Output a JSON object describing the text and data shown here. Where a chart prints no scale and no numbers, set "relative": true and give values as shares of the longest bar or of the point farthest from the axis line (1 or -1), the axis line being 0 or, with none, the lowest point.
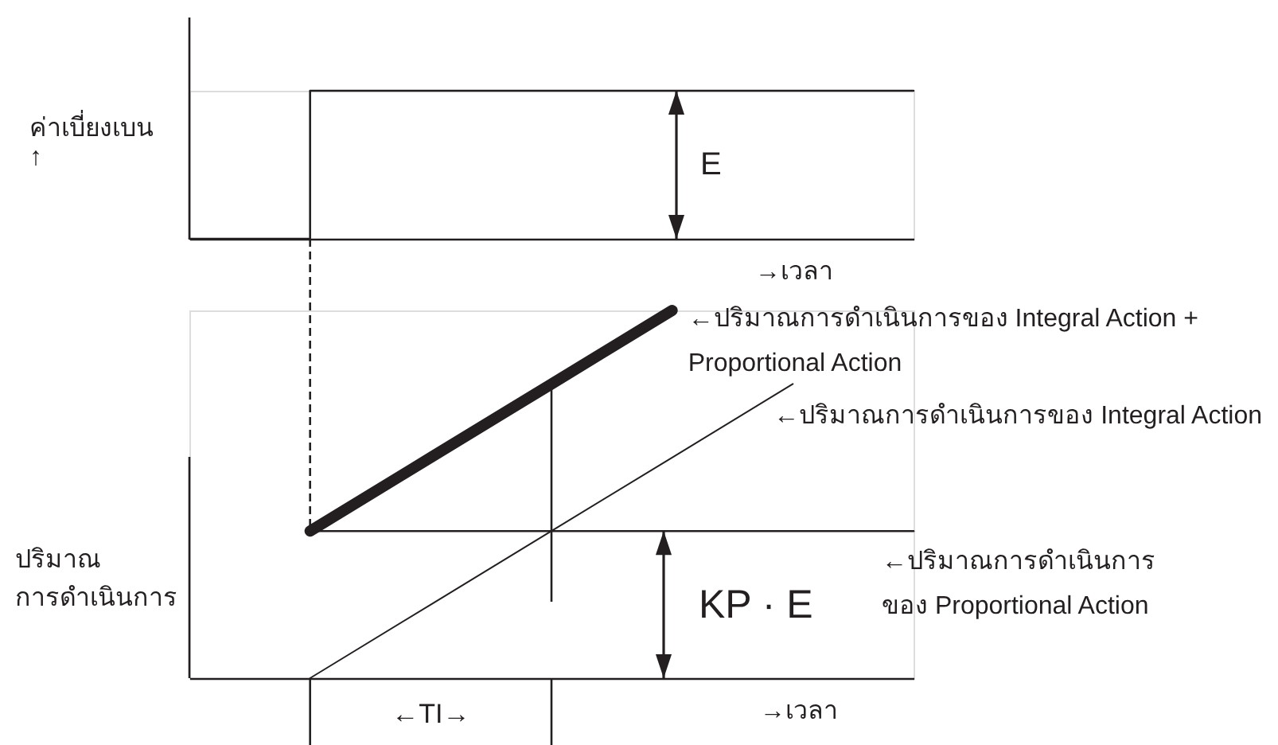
{
  "chart_data": [
    {
      "type": "step",
      "relative": true,
      "ylabel": "ค่าเบี่ยงเบน\n↑",
      "xlabel": "→เวลา",
      "categories": [
        null,
        null,
        null,
        null,
        null,
        null,
        null
      ],
      "series": [
        {
          "color": "#231f20",
          "values": [
            0,
            1,
            1,
            1,
            1,
            1,
            1
          ]
        }
      ],
      "annotations": [
        "E"
      ]
    },
    {
      "type": "line",
      "relative": true,
      "ylabel": "ปริมาณ\nการดำเนินการ",
      "xlabel": "→เวลา",
      "categories": [
        null,
        null,
        null,
        null,
        null,
        null,
        null
      ],
      "series": [
        {
          "name": "←ปริมาณการดำเนินการของ Integral Action +\nProportional Action",
          "color": "#231f20",
          "values": [
            null,
            0.4,
            0.6,
            0.8,
            1,
            null,
            null
          ]
        },
        {
          "name": "←ปริมาณการดำเนินการของ Integral Action",
          "color": "#231f20",
          "values": [
            null,
            0,
            0.2,
            0.4,
            0.6,
            0.8,
            null
          ]
        },
        {
          "name": "←ปริมาณการดำเนินการ\nของ Proportional Action",
          "color": "#231f20",
          "values": [
            null,
            0.4,
            0.4,
            0.4,
            0.4,
            0.4,
            0.4
          ]
        }
      ],
      "annotations": [
        "KP · E",
        "←TI→"
      ]
    }
  ]
}
